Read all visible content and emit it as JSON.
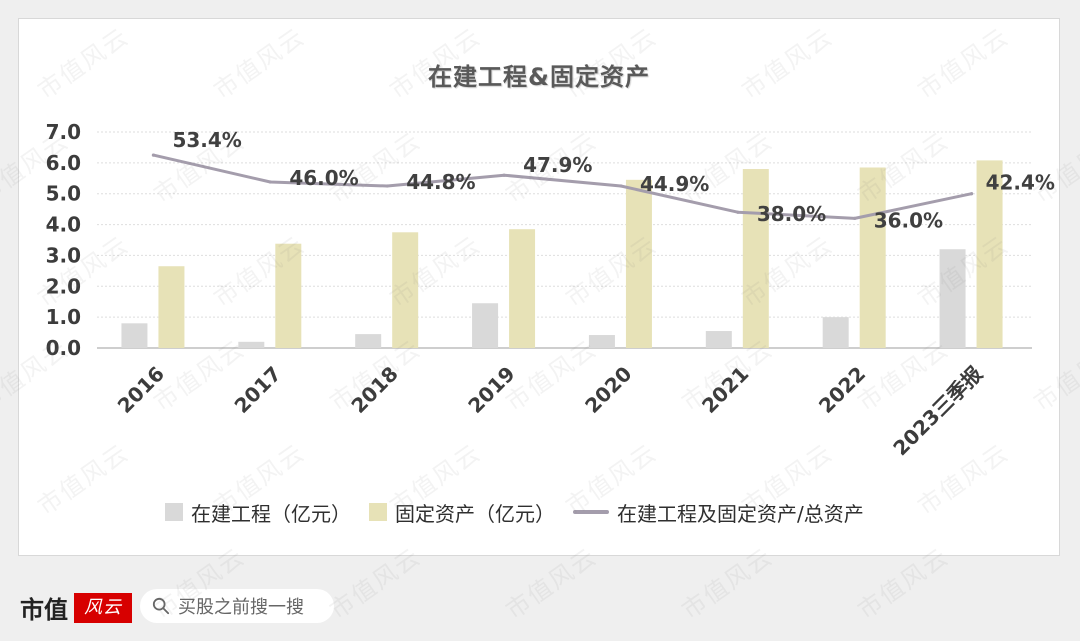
{
  "header": {
    "title": "在建工程&固定资产"
  },
  "chart_data": {
    "type": "bar",
    "title": "在建工程&固定资产",
    "categories": [
      "2016",
      "2017",
      "2018",
      "2019",
      "2020",
      "2021",
      "2022",
      "2023三季报"
    ],
    "ylim": [
      0,
      7
    ],
    "y_ticks": [
      "0.0",
      "1.0",
      "2.0",
      "3.0",
      "4.0",
      "5.0",
      "6.0",
      "7.0"
    ],
    "grid": true,
    "legend_position": "bottom",
    "series": [
      {
        "name": "在建工程（亿元）",
        "type": "bar",
        "values": [
          0.8,
          0.2,
          0.45,
          1.45,
          0.42,
          0.55,
          1.0,
          3.2
        ],
        "color": "#d9d9d9"
      },
      {
        "name": "固定资产（亿元）",
        "type": "bar",
        "values": [
          2.65,
          3.38,
          3.75,
          3.85,
          5.45,
          5.8,
          5.85,
          6.08
        ],
        "color": "#e7e2b7"
      },
      {
        "name": "在建工程及固定资产/总资产",
        "type": "line",
        "values": [
          6.25,
          5.38,
          5.25,
          5.6,
          5.25,
          4.4,
          4.2,
          5.0
        ],
        "data_labels": [
          "53.4%",
          "46.0%",
          "44.8%",
          "47.9%",
          "44.9%",
          "38.0%",
          "36.0%",
          "42.4%"
        ],
        "color": "#a49dac"
      }
    ]
  },
  "legend": {
    "items": [
      {
        "label": "在建工程（亿元）",
        "color": "#d9d9d9",
        "kind": "bar"
      },
      {
        "label": "固定资产（亿元）",
        "color": "#e7e2b7",
        "kind": "bar"
      },
      {
        "label": "在建工程及固定资产/总资产",
        "color": "#a49dac",
        "kind": "line"
      }
    ]
  },
  "watermark": {
    "text": "市值风云"
  },
  "footer": {
    "brand": "市值",
    "brand_mark": "风云",
    "search_placeholder": "买股之前搜一搜",
    "search_icon": "search-icon"
  }
}
